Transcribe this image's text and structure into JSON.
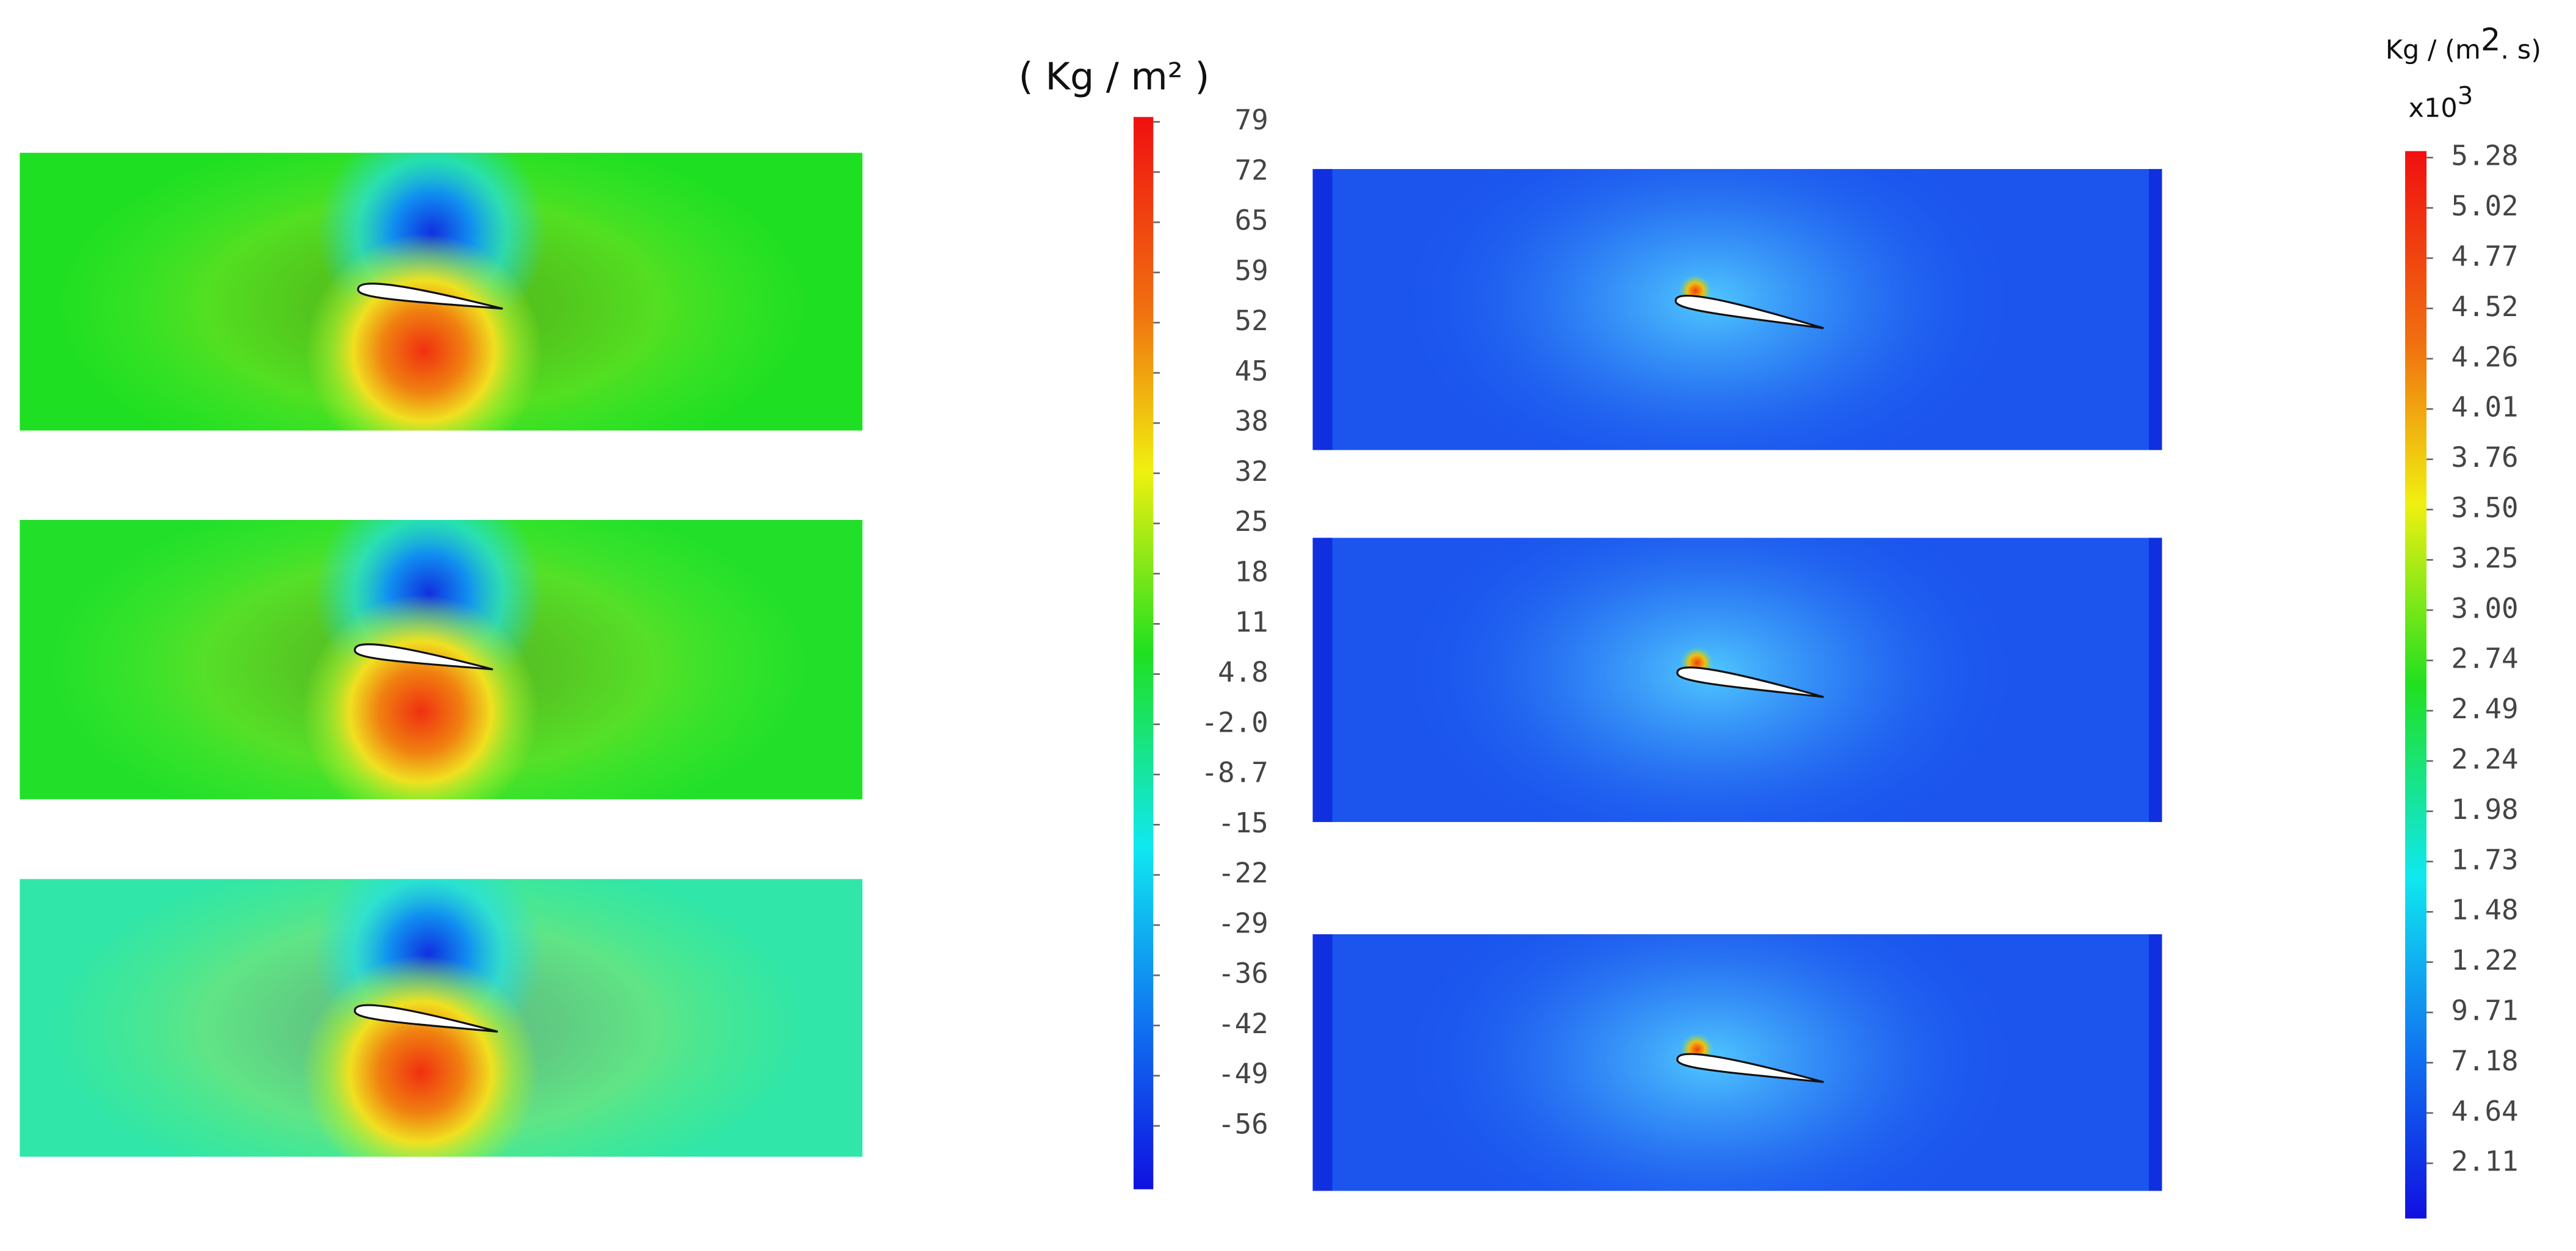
{
  "left_colorbar": {
    "unit": "( Kg / m² )",
    "labels": [
      "79",
      "72",
      "65",
      "59",
      "52",
      "45",
      "38",
      "32",
      "25",
      "18",
      "11",
      "4.8",
      "-2.0",
      "-8.7",
      "-15",
      "-22",
      "-29",
      "-36",
      "-42",
      "-49",
      "-56"
    ]
  },
  "right_colorbar": {
    "unit": [
      "Kg / (m",
      "2",
      ". s)"
    ],
    "multiplier": [
      "x10",
      "3"
    ],
    "labels": [
      "5.28",
      "5.02",
      "4.77",
      "4.52",
      "4.26",
      "4.01",
      "3.76",
      "3.50",
      "3.25",
      "3.00",
      "2.74",
      "2.49",
      "2.24",
      "1.98",
      "1.73",
      "1.48",
      "1.22",
      "9.71",
      "7.18",
      "4.64",
      "2.11"
    ]
  }
}
